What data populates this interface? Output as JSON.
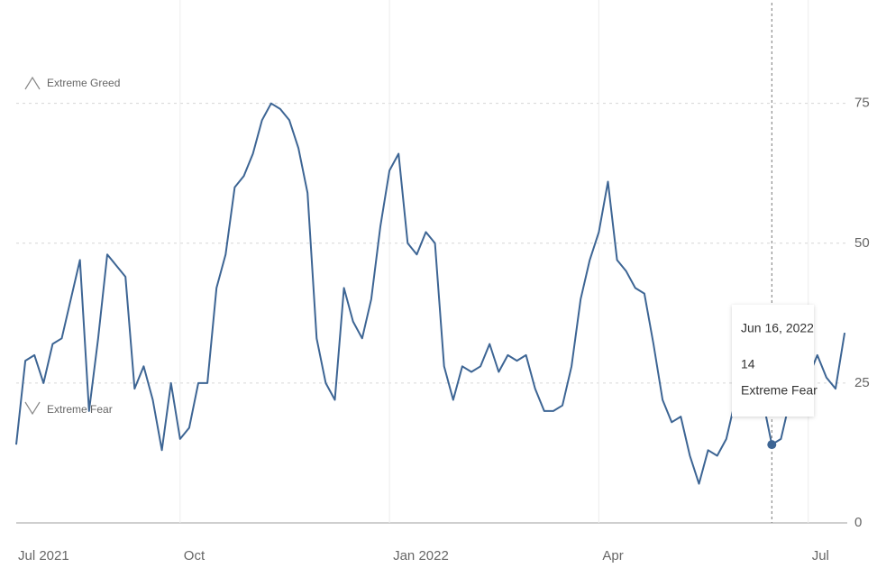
{
  "chart_data": {
    "type": "line",
    "categories": [
      "Jul 2021",
      null,
      null,
      null,
      null,
      null,
      null,
      null,
      null,
      null,
      null,
      null,
      null,
      null,
      null,
      null,
      null,
      null,
      "Oct",
      null,
      null,
      null,
      null,
      null,
      null,
      null,
      null,
      null,
      null,
      null,
      null,
      null,
      null,
      null,
      null,
      null,
      null,
      null,
      null,
      null,
      null,
      "Jan 2022",
      null,
      null,
      null,
      null,
      null,
      null,
      null,
      null,
      null,
      null,
      null,
      null,
      null,
      null,
      null,
      null,
      null,
      null,
      null,
      null,
      null,
      null,
      "Apr",
      null,
      null,
      null,
      null,
      null,
      null,
      null,
      null,
      null,
      null,
      null,
      null,
      null,
      null,
      null,
      null,
      null,
      null,
      null,
      null,
      null,
      null,
      "Jul",
      null,
      null,
      null,
      null
    ],
    "series": [
      {
        "color": "#3d6594",
        "values": [
          14,
          29,
          30,
          25,
          32,
          33,
          40,
          47,
          20,
          33,
          48,
          46,
          44,
          24,
          28,
          22,
          13,
          25,
          15,
          17,
          25,
          25,
          42,
          48,
          60,
          62,
          66,
          72,
          75,
          74,
          72,
          67,
          59,
          33,
          25,
          22,
          42,
          36,
          33,
          40,
          53,
          63,
          66,
          50,
          48,
          52,
          50,
          28,
          22,
          28,
          27,
          28,
          32,
          27,
          30,
          29,
          30,
          24,
          20,
          20,
          21,
          28,
          40,
          47,
          52,
          61,
          47,
          45,
          42,
          41,
          32,
          22,
          18,
          19,
          12,
          7,
          13,
          12,
          15,
          22,
          22,
          23,
          22,
          14,
          15,
          22,
          25,
          26,
          30,
          26,
          24,
          34
        ]
      }
    ],
    "ylim": [
      0,
      93
    ],
    "yticks": [
      0,
      25,
      50,
      75
    ],
    "grid": true,
    "annotations": [
      {
        "text": "Extreme Greed"
      },
      {
        "text": "Extreme Fear"
      }
    ],
    "tooltip": {
      "title": "Jun 16, 2022",
      "value": 14,
      "label": "Extreme Fear"
    }
  }
}
